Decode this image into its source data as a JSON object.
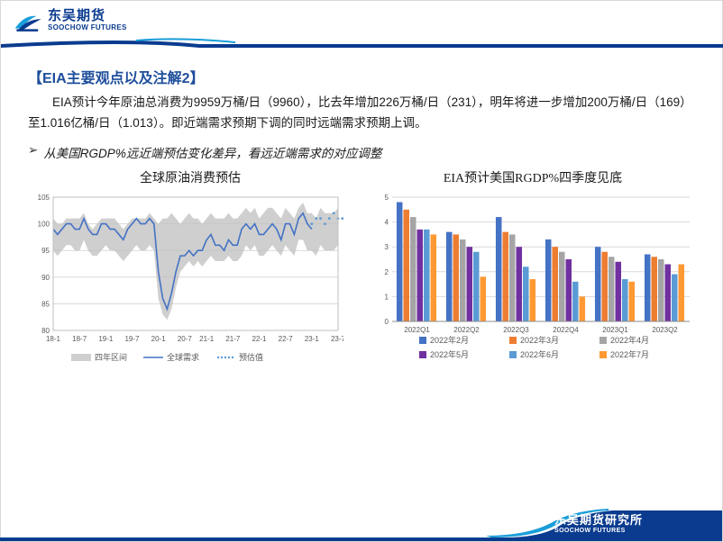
{
  "header": {
    "brand_cn": "东吴期货",
    "brand_en": "SOOCHOW FUTURES",
    "brand_color": "#0a3b8f",
    "accent_color": "#1f4e9c",
    "swoosh_bg": "#e9eef8"
  },
  "title": "【EIA主要观点以及注解2】",
  "paragraph": "EIA预计今年原油总消费为9959万桶/日（9960），比去年增加226万桶/日（231），明年将进一步增加200万桶/日（169）至1.016亿桶/日（1.013）。即近端需求预期下调的同时远端需求预期上调。",
  "bullet": "从美国RGDP%远近端预估变化差异，看远近端需求的对应调整",
  "chart_left": {
    "type": "area+line",
    "title": "全球原油消费预估",
    "x_labels": [
      "18-1",
      "18-7",
      "19-1",
      "19-7",
      "20-1",
      "20-7",
      "21-1",
      "21-7",
      "22-1",
      "22-7",
      "23-1",
      "23-7"
    ],
    "ylim": [
      80,
      105
    ],
    "ytick_step": 5,
    "label_fontsize": 8,
    "background_color": "#ffffff",
    "grid_color": "#d9d9d9",
    "band_color": "#bfbfbf",
    "band_opacity": 0.75,
    "line_color": "#4472c4",
    "dot_color": "#5b9bd5",
    "legend": [
      {
        "label": "四年区间",
        "swatch": "#bfbfbf",
        "kind": "area"
      },
      {
        "label": "全球需求",
        "swatch": "#4472c4",
        "kind": "line"
      },
      {
        "label": "预估值",
        "swatch": "#5b9bd5",
        "kind": "dots"
      }
    ],
    "band_upper": [
      101,
      100,
      100,
      101,
      101,
      101,
      101,
      102,
      100,
      99,
      100,
      101,
      101,
      101,
      101,
      100,
      99,
      100,
      101,
      101,
      101,
      101,
      102,
      101,
      100,
      101,
      101,
      102,
      101,
      100,
      101,
      102,
      101,
      101,
      100,
      101,
      102,
      101,
      101,
      101,
      102,
      101,
      101,
      102,
      103,
      102,
      103,
      101,
      102,
      103,
      103,
      102,
      101,
      103,
      102,
      101,
      103,
      104,
      102,
      102,
      101,
      103,
      102,
      102,
      102,
      103
    ],
    "band_lower": [
      95,
      94,
      95,
      96,
      96,
      95,
      95,
      97,
      95,
      94,
      94,
      95,
      96,
      95,
      95,
      94,
      93,
      94,
      95,
      96,
      95,
      95,
      96,
      95,
      86,
      83,
      82,
      84,
      88,
      91,
      92,
      93,
      92,
      93,
      92,
      93,
      94,
      93,
      93,
      93,
      94,
      93,
      93,
      94,
      96,
      95,
      96,
      94,
      94,
      95,
      96,
      95,
      94,
      96,
      95,
      94,
      97,
      97,
      95,
      95,
      94,
      96,
      95,
      95,
      95,
      96
    ],
    "line_values": [
      99,
      98,
      99,
      100,
      100,
      99,
      99,
      101,
      99,
      98,
      98,
      100,
      100,
      99,
      99,
      98,
      97,
      99,
      100,
      101,
      100,
      100,
      101,
      100,
      91,
      86,
      84,
      87,
      91,
      94,
      94,
      95,
      94,
      95,
      95,
      97,
      98,
      96,
      96,
      95,
      97,
      96,
      96,
      99,
      100,
      99,
      100,
      98,
      98,
      99,
      100,
      99,
      97,
      100,
      100,
      98,
      101,
      102,
      100,
      99
    ],
    "forecast_values": [
      100,
      101,
      101,
      100,
      101,
      102,
      101,
      101,
      101,
      102
    ]
  },
  "chart_right": {
    "type": "bar",
    "title": "EIA预计美国RGDP%四季度见底",
    "categories": [
      "2022Q1",
      "2022Q2",
      "2022Q3",
      "2022Q4",
      "2023Q1",
      "2023Q2"
    ],
    "ylim": [
      0,
      5
    ],
    "ytick_step": 1,
    "label_fontsize": 8,
    "background_color": "#ffffff",
    "grid_color": "#d9d9d9",
    "series": [
      {
        "name": "2022年2月",
        "color": "#4472c4",
        "values": [
          4.8,
          3.6,
          4.2,
          3.3,
          3.0,
          2.7
        ]
      },
      {
        "name": "2022年3月",
        "color": "#ed7d31",
        "values": [
          4.5,
          3.5,
          3.6,
          3.0,
          2.8,
          2.6
        ]
      },
      {
        "name": "2022年4月",
        "color": "#a5a5a5",
        "values": [
          4.2,
          3.3,
          3.5,
          2.8,
          2.6,
          2.5
        ]
      },
      {
        "name": "2022年5月",
        "color": "#7030a0",
        "values": [
          3.7,
          3.0,
          3.0,
          2.5,
          2.4,
          2.3
        ]
      },
      {
        "name": "2022年6月",
        "color": "#5b9bd5",
        "values": [
          3.7,
          2.8,
          2.2,
          1.6,
          1.7,
          1.9
        ]
      },
      {
        "name": "2022年7月",
        "color": "#ff9933",
        "values": [
          3.5,
          1.8,
          1.7,
          1.0,
          1.6,
          2.3
        ]
      }
    ],
    "bar_group_width": 0.82
  },
  "footer": {
    "brand_cn": "东吴期货研究所",
    "brand_en": "SOOCHOW FUTURES",
    "band_color": "#0a3b8f"
  }
}
